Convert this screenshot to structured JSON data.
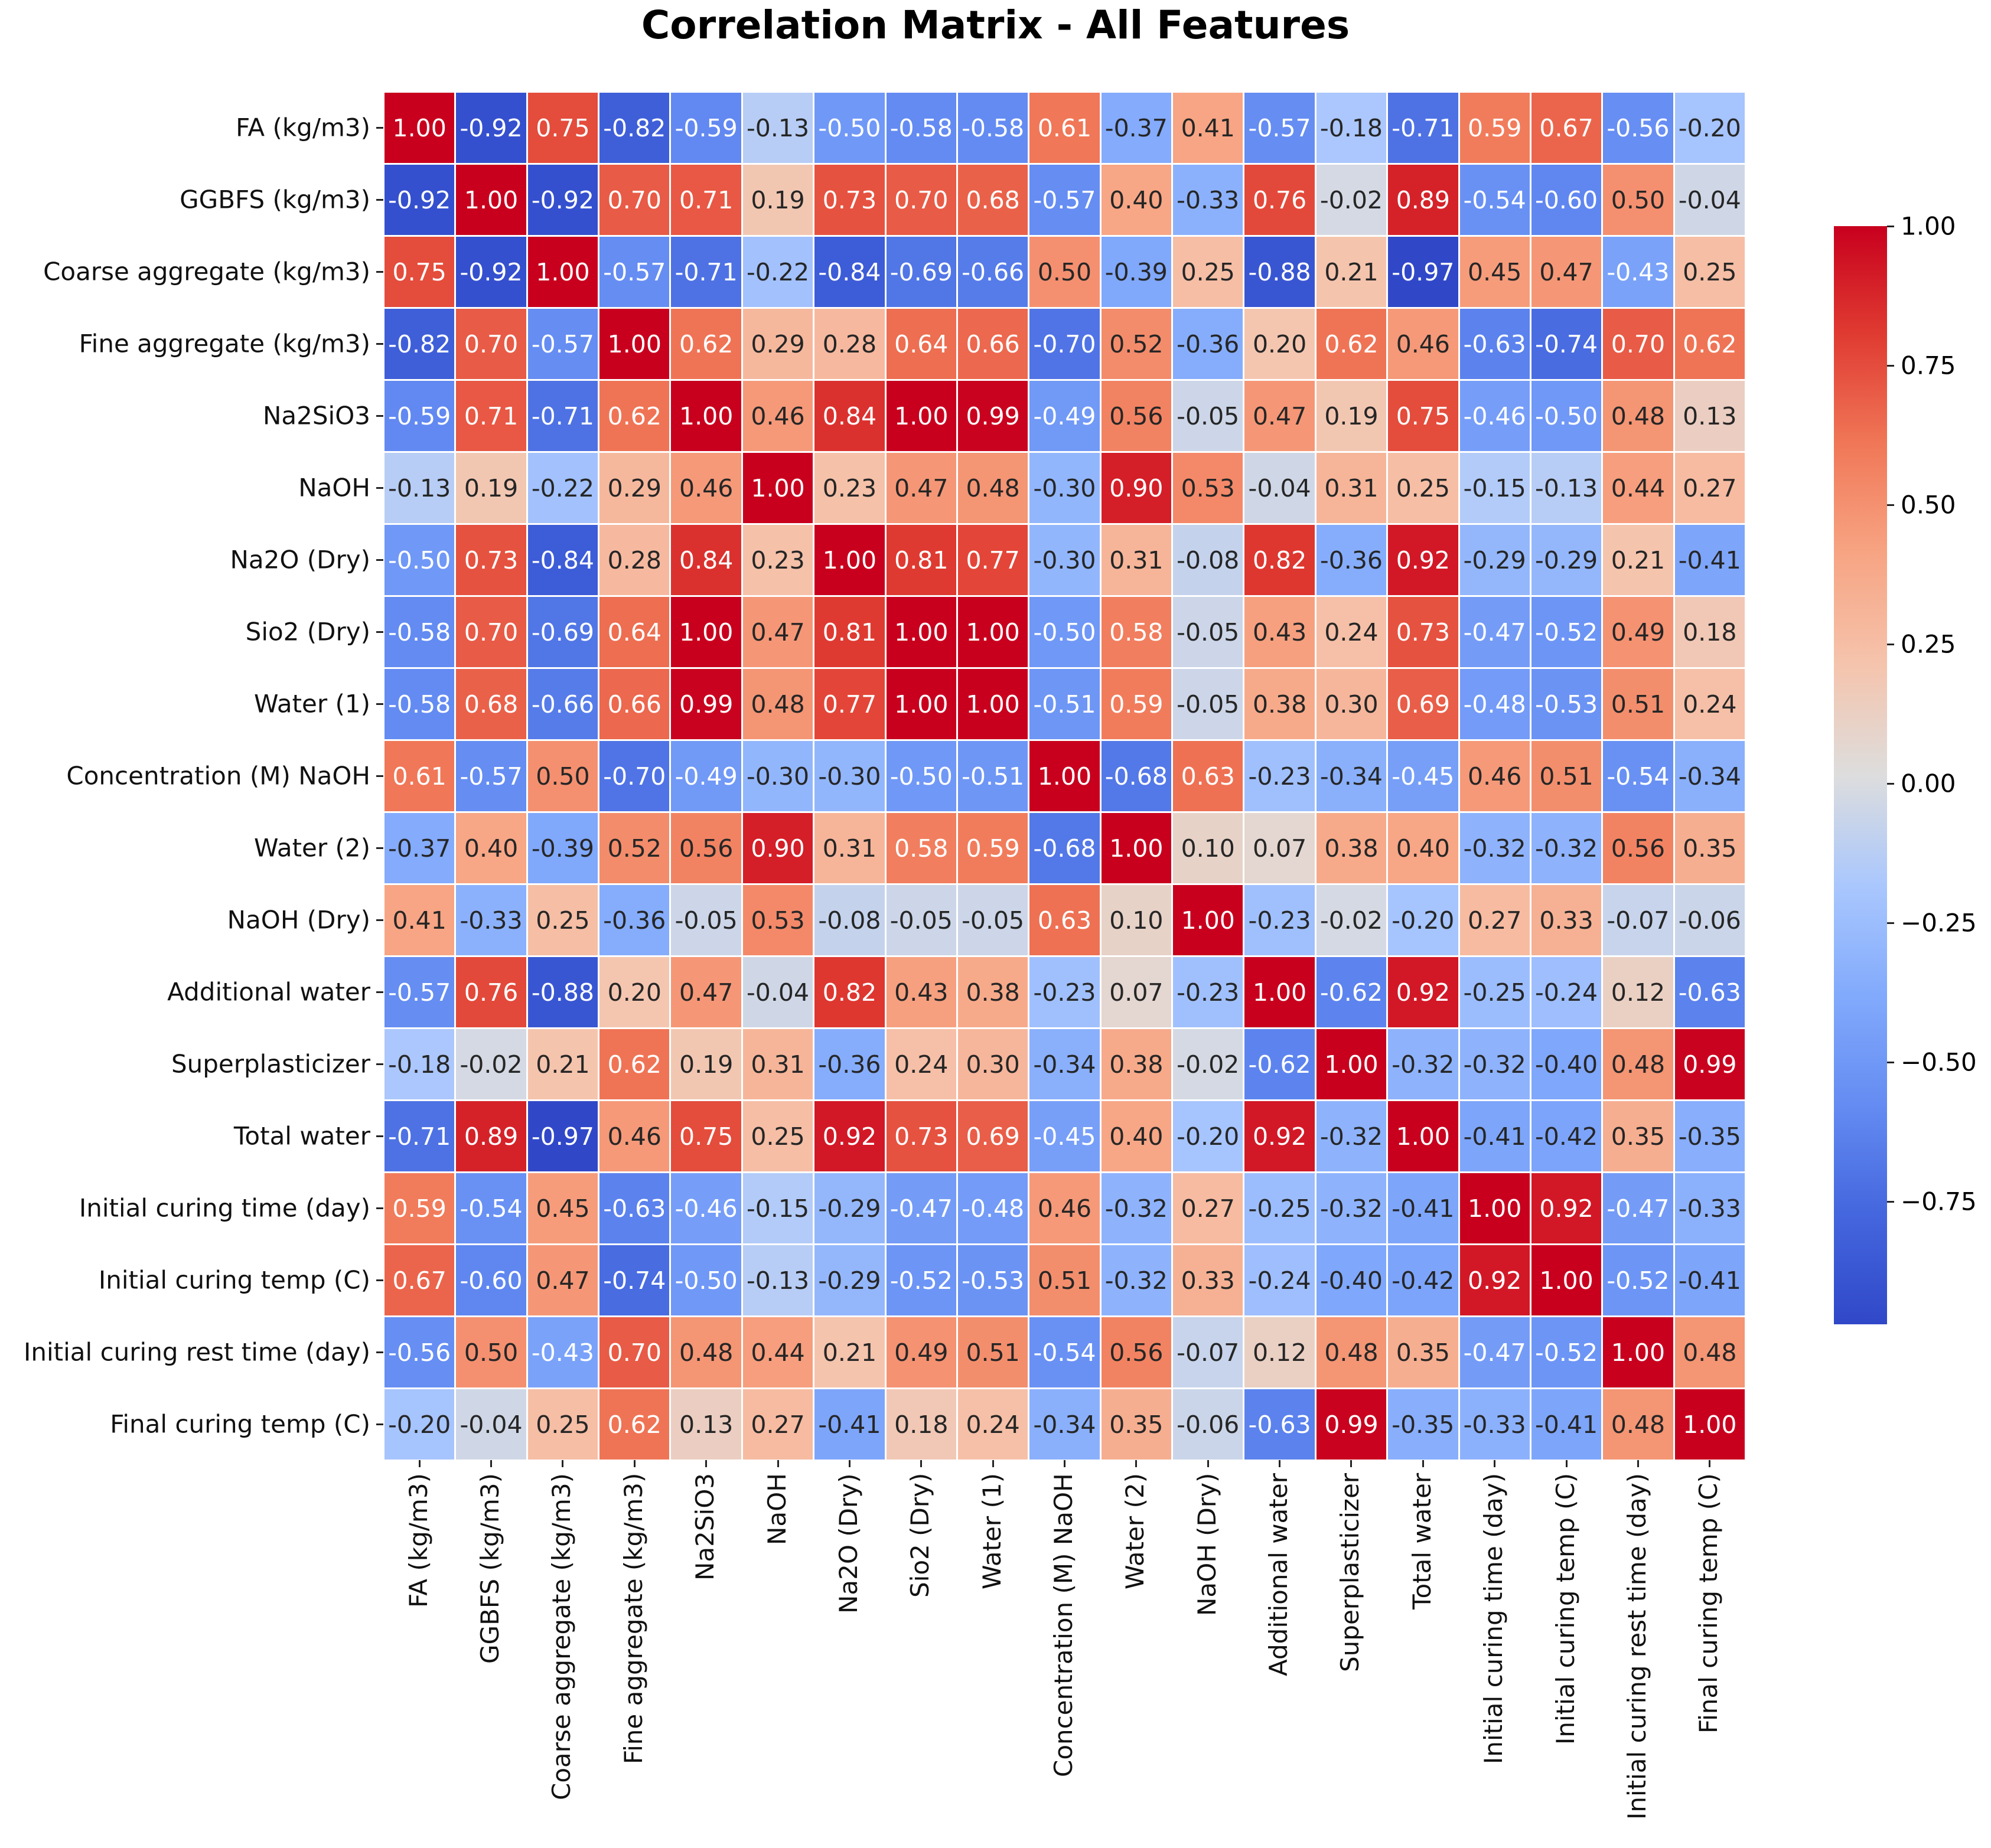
{
  "chart_data": {
    "type": "heatmap",
    "title": "Correlation Matrix - All Features",
    "colormap": "coolwarm",
    "vrange": [
      -0.97,
      1.0
    ],
    "colorbar_ticks": [
      1.0,
      0.75,
      0.5,
      0.25,
      0.0,
      -0.25,
      -0.5,
      -0.75
    ],
    "colorbar_tick_labels": [
      "1.00",
      "0.75",
      "0.50",
      "0.25",
      "0.00",
      "−0.25",
      "−0.50",
      "−0.75"
    ],
    "labels": [
      "FA (kg/m3)",
      "GGBFS (kg/m3)",
      "Coarse aggregate (kg/m3)",
      "Fine aggregate (kg/m3)",
      "Na2SiO3",
      "NaOH",
      "Na2O (Dry)",
      "Sio2 (Dry)",
      "Water (1)",
      "Concentration (M) NaOH",
      "Water (2)",
      "NaOH (Dry)",
      "Additional water",
      "Superplasticizer",
      "Total water",
      "Initial curing time (day)",
      "Initial curing temp (C)",
      "Initial curing rest time (day)",
      "Final curing temp (C)"
    ],
    "matrix": [
      [
        1.0,
        -0.92,
        0.75,
        -0.82,
        -0.59,
        -0.13,
        -0.5,
        -0.58,
        -0.58,
        0.61,
        -0.37,
        0.41,
        -0.57,
        -0.18,
        -0.71,
        0.59,
        0.67,
        -0.56,
        -0.2
      ],
      [
        -0.92,
        1.0,
        -0.92,
        0.7,
        0.71,
        0.19,
        0.73,
        0.7,
        0.68,
        -0.57,
        0.4,
        -0.33,
        0.76,
        -0.02,
        0.89,
        -0.54,
        -0.6,
        0.5,
        -0.04
      ],
      [
        0.75,
        -0.92,
        1.0,
        -0.57,
        -0.71,
        -0.22,
        -0.84,
        -0.69,
        -0.66,
        0.5,
        -0.39,
        0.25,
        -0.88,
        0.21,
        -0.97,
        0.45,
        0.47,
        -0.43,
        0.25
      ],
      [
        -0.82,
        0.7,
        -0.57,
        1.0,
        0.62,
        0.29,
        0.28,
        0.64,
        0.66,
        -0.7,
        0.52,
        -0.36,
        0.2,
        0.62,
        0.46,
        -0.63,
        -0.74,
        0.7,
        0.62
      ],
      [
        -0.59,
        0.71,
        -0.71,
        0.62,
        1.0,
        0.46,
        0.84,
        1.0,
        0.99,
        -0.49,
        0.56,
        -0.05,
        0.47,
        0.19,
        0.75,
        -0.46,
        -0.5,
        0.48,
        0.13
      ],
      [
        -0.13,
        0.19,
        -0.22,
        0.29,
        0.46,
        1.0,
        0.23,
        0.47,
        0.48,
        -0.3,
        0.9,
        0.53,
        -0.04,
        0.31,
        0.25,
        -0.15,
        -0.13,
        0.44,
        0.27
      ],
      [
        -0.5,
        0.73,
        -0.84,
        0.28,
        0.84,
        0.23,
        1.0,
        0.81,
        0.77,
        -0.3,
        0.31,
        -0.08,
        0.82,
        -0.36,
        0.92,
        -0.29,
        -0.29,
        0.21,
        -0.41
      ],
      [
        -0.58,
        0.7,
        -0.69,
        0.64,
        1.0,
        0.47,
        0.81,
        1.0,
        1.0,
        -0.5,
        0.58,
        -0.05,
        0.43,
        0.24,
        0.73,
        -0.47,
        -0.52,
        0.49,
        0.18
      ],
      [
        -0.58,
        0.68,
        -0.66,
        0.66,
        0.99,
        0.48,
        0.77,
        1.0,
        1.0,
        -0.51,
        0.59,
        -0.05,
        0.38,
        0.3,
        0.69,
        -0.48,
        -0.53,
        0.51,
        0.24
      ],
      [
        0.61,
        -0.57,
        0.5,
        -0.7,
        -0.49,
        -0.3,
        -0.3,
        -0.5,
        -0.51,
        1.0,
        -0.68,
        0.63,
        -0.23,
        -0.34,
        -0.45,
        0.46,
        0.51,
        -0.54,
        -0.34
      ],
      [
        -0.37,
        0.4,
        -0.39,
        0.52,
        0.56,
        0.9,
        0.31,
        0.58,
        0.59,
        -0.68,
        1.0,
        0.1,
        0.07,
        0.38,
        0.4,
        -0.32,
        -0.32,
        0.56,
        0.35
      ],
      [
        0.41,
        -0.33,
        0.25,
        -0.36,
        -0.05,
        0.53,
        -0.08,
        -0.05,
        -0.05,
        0.63,
        0.1,
        1.0,
        -0.23,
        -0.02,
        -0.2,
        0.27,
        0.33,
        -0.07,
        -0.06
      ],
      [
        -0.57,
        0.76,
        -0.88,
        0.2,
        0.47,
        -0.04,
        0.82,
        0.43,
        0.38,
        -0.23,
        0.07,
        -0.23,
        1.0,
        -0.62,
        0.92,
        -0.25,
        -0.24,
        0.12,
        -0.63
      ],
      [
        -0.18,
        -0.02,
        0.21,
        0.62,
        0.19,
        0.31,
        -0.36,
        0.24,
        0.3,
        -0.34,
        0.38,
        -0.02,
        -0.62,
        1.0,
        -0.32,
        -0.32,
        -0.4,
        0.48,
        0.99
      ],
      [
        -0.71,
        0.89,
        -0.97,
        0.46,
        0.75,
        0.25,
        0.92,
        0.73,
        0.69,
        -0.45,
        0.4,
        -0.2,
        0.92,
        -0.32,
        1.0,
        -0.41,
        -0.42,
        0.35,
        -0.35
      ],
      [
        0.59,
        -0.54,
        0.45,
        -0.63,
        -0.46,
        -0.15,
        -0.29,
        -0.47,
        -0.48,
        0.46,
        -0.32,
        0.27,
        -0.25,
        -0.32,
        -0.41,
        1.0,
        0.92,
        -0.47,
        -0.33
      ],
      [
        0.67,
        -0.6,
        0.47,
        -0.74,
        -0.5,
        -0.13,
        -0.29,
        -0.52,
        -0.53,
        0.51,
        -0.32,
        0.33,
        -0.24,
        -0.4,
        -0.42,
        0.92,
        1.0,
        -0.52,
        -0.41
      ],
      [
        -0.56,
        0.5,
        -0.43,
        0.7,
        0.48,
        0.44,
        0.21,
        0.49,
        0.51,
        -0.54,
        0.56,
        -0.07,
        0.12,
        0.48,
        0.35,
        -0.47,
        -0.52,
        1.0,
        0.48
      ],
      [
        -0.2,
        -0.04,
        0.25,
        0.62,
        0.13,
        0.27,
        -0.41,
        0.18,
        0.24,
        -0.34,
        0.35,
        -0.06,
        -0.63,
        0.99,
        -0.35,
        -0.33,
        -0.41,
        0.48,
        1.0
      ]
    ]
  }
}
